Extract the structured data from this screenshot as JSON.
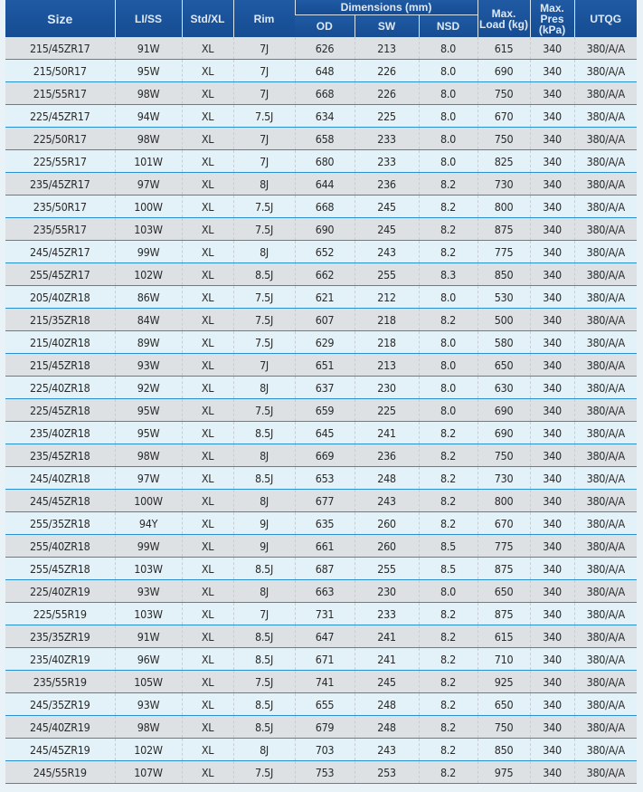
{
  "header": {
    "size": "Size",
    "li_ss": "LI/SS",
    "std_xl": "Std/XL",
    "rim": "Rim",
    "dimensions": "Dimensions (mm)",
    "od": "OD",
    "sw": "SW",
    "nsd": "NSD",
    "max_load": "Max. Load (kg)",
    "max_pres": "Max. Pres (kPa)",
    "utqg": "UTQG"
  },
  "colors": {
    "header_bg": "#1a529b",
    "row_gray": "#dde1e4",
    "row_blue": "#e3f2f8",
    "separator": "#2c8fd0"
  },
  "rows": [
    [
      "215/45ZR17",
      "91W",
      "XL",
      "7J",
      "626",
      "213",
      "8.0",
      "615",
      "340",
      "380/A/A"
    ],
    [
      "215/50R17",
      "95W",
      "XL",
      "7J",
      "648",
      "226",
      "8.0",
      "690",
      "340",
      "380/A/A"
    ],
    [
      "215/55R17",
      "98W",
      "XL",
      "7J",
      "668",
      "226",
      "8.0",
      "750",
      "340",
      "380/A/A"
    ],
    [
      "225/45ZR17",
      "94W",
      "XL",
      "7.5J",
      "634",
      "225",
      "8.0",
      "670",
      "340",
      "380/A/A"
    ],
    [
      "225/50R17",
      "98W",
      "XL",
      "7J",
      "658",
      "233",
      "8.0",
      "750",
      "340",
      "380/A/A"
    ],
    [
      "225/55R17",
      "101W",
      "XL",
      "7J",
      "680",
      "233",
      "8.0",
      "825",
      "340",
      "380/A/A"
    ],
    [
      "235/45ZR17",
      "97W",
      "XL",
      "8J",
      "644",
      "236",
      "8.2",
      "730",
      "340",
      "380/A/A"
    ],
    [
      "235/50R17",
      "100W",
      "XL",
      "7.5J",
      "668",
      "245",
      "8.2",
      "800",
      "340",
      "380/A/A"
    ],
    [
      "235/55R17",
      "103W",
      "XL",
      "7.5J",
      "690",
      "245",
      "8.2",
      "875",
      "340",
      "380/A/A"
    ],
    [
      "245/45ZR17",
      "99W",
      "XL",
      "8J",
      "652",
      "243",
      "8.2",
      "775",
      "340",
      "380/A/A"
    ],
    [
      "255/45ZR17",
      "102W",
      "XL",
      "8.5J",
      "662",
      "255",
      "8.3",
      "850",
      "340",
      "380/A/A"
    ],
    [
      "205/40ZR18",
      "86W",
      "XL",
      "7.5J",
      "621",
      "212",
      "8.0",
      "530",
      "340",
      "380/A/A"
    ],
    [
      "215/35ZR18",
      "84W",
      "XL",
      "7.5J",
      "607",
      "218",
      "8.2",
      "500",
      "340",
      "380/A/A"
    ],
    [
      "215/40ZR18",
      "89W",
      "XL",
      "7.5J",
      "629",
      "218",
      "8.0",
      "580",
      "340",
      "380/A/A"
    ],
    [
      "215/45ZR18",
      "93W",
      "XL",
      "7J",
      "651",
      "213",
      "8.0",
      "650",
      "340",
      "380/A/A"
    ],
    [
      "225/40ZR18",
      "92W",
      "XL",
      "8J",
      "637",
      "230",
      "8.0",
      "630",
      "340",
      "380/A/A"
    ],
    [
      "225/45ZR18",
      "95W",
      "XL",
      "7.5J",
      "659",
      "225",
      "8.0",
      "690",
      "340",
      "380/A/A"
    ],
    [
      "235/40ZR18",
      "95W",
      "XL",
      "8.5J",
      "645",
      "241",
      "8.2",
      "690",
      "340",
      "380/A/A"
    ],
    [
      "235/45ZR18",
      "98W",
      "XL",
      "8J",
      "669",
      "236",
      "8.2",
      "750",
      "340",
      "380/A/A"
    ],
    [
      "245/40ZR18",
      "97W",
      "XL",
      "8.5J",
      "653",
      "248",
      "8.2",
      "730",
      "340",
      "380/A/A"
    ],
    [
      "245/45ZR18",
      "100W",
      "XL",
      "8J",
      "677",
      "243",
      "8.2",
      "800",
      "340",
      "380/A/A"
    ],
    [
      "255/35ZR18",
      "94Y",
      "XL",
      "9J",
      "635",
      "260",
      "8.2",
      "670",
      "340",
      "380/A/A"
    ],
    [
      "255/40ZR18",
      "99W",
      "XL",
      "9J",
      "661",
      "260",
      "8.5",
      "775",
      "340",
      "380/A/A"
    ],
    [
      "255/45ZR18",
      "103W",
      "XL",
      "8.5J",
      "687",
      "255",
      "8.5",
      "875",
      "340",
      "380/A/A"
    ],
    [
      "225/40ZR19",
      "93W",
      "XL",
      "8J",
      "663",
      "230",
      "8.0",
      "650",
      "340",
      "380/A/A"
    ],
    [
      "225/55R19",
      "103W",
      "XL",
      "7J",
      "731",
      "233",
      "8.2",
      "875",
      "340",
      "380/A/A"
    ],
    [
      "235/35ZR19",
      "91W",
      "XL",
      "8.5J",
      "647",
      "241",
      "8.2",
      "615",
      "340",
      "380/A/A"
    ],
    [
      "235/40ZR19",
      "96W",
      "XL",
      "8.5J",
      "671",
      "241",
      "8.2",
      "710",
      "340",
      "380/A/A"
    ],
    [
      "235/55R19",
      "105W",
      "XL",
      "7.5J",
      "741",
      "245",
      "8.2",
      "925",
      "340",
      "380/A/A"
    ],
    [
      "245/35ZR19",
      "93W",
      "XL",
      "8.5J",
      "655",
      "248",
      "8.2",
      "650",
      "340",
      "380/A/A"
    ],
    [
      "245/40ZR19",
      "98W",
      "XL",
      "8.5J",
      "679",
      "248",
      "8.2",
      "750",
      "340",
      "380/A/A"
    ],
    [
      "245/45ZR19",
      "102W",
      "XL",
      "8J",
      "703",
      "243",
      "8.2",
      "850",
      "340",
      "380/A/A"
    ],
    [
      "245/55R19",
      "107W",
      "XL",
      "7.5J",
      "753",
      "253",
      "8.2",
      "975",
      "340",
      "380/A/A"
    ]
  ]
}
